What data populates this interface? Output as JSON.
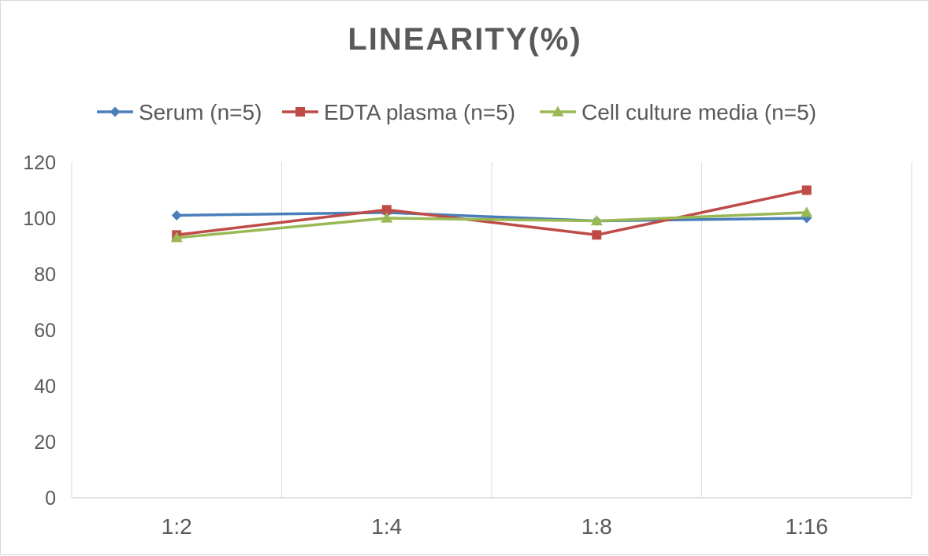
{
  "chart_data": {
    "type": "line",
    "title": "LINEARITY(%)",
    "xlabel": "",
    "ylabel": "",
    "categories": [
      "1:2",
      "1:4",
      "1:8",
      "1:16"
    ],
    "ylim": [
      0,
      120
    ],
    "yticks": [
      0,
      20,
      40,
      60,
      80,
      100,
      120
    ],
    "grid": "vertical",
    "legend": "top",
    "series": [
      {
        "name": "Serum (n=5)",
        "color": "#4a7ebb",
        "marker": "diamond",
        "values": [
          101,
          102,
          99,
          100
        ]
      },
      {
        "name": "EDTA plasma (n=5)",
        "color": "#be4b48",
        "marker": "square",
        "values": [
          94,
          103,
          94,
          110
        ]
      },
      {
        "name": "Cell culture media (n=5)",
        "color": "#98b954",
        "marker": "triangle",
        "values": [
          93,
          100,
          99,
          102
        ]
      }
    ]
  }
}
